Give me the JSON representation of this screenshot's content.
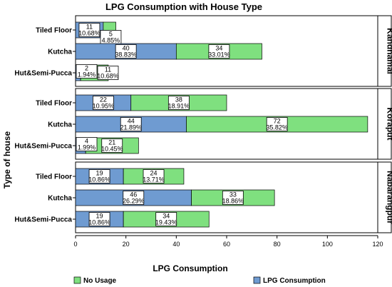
{
  "chart_data": {
    "type": "bar",
    "orientation": "horizontal",
    "stacked": true,
    "title": "LPG Consumption with House Type",
    "xlabel": "LPG Consumption",
    "ylabel": "Type of house",
    "xlim": [
      0,
      120
    ],
    "xticks": [
      "0",
      "20",
      "40",
      "60",
      "80",
      "100",
      "120"
    ],
    "grid": false,
    "legend_position": "bottom",
    "series": [
      {
        "key": "lpg",
        "name": "LPG Consumption",
        "color": "#6f9bd1"
      },
      {
        "key": "none",
        "name": "No Usage",
        "color": "#7fe07f"
      }
    ],
    "legend": [
      {
        "key": "none",
        "name": "No Usage",
        "color": "#7fe07f"
      },
      {
        "key": "lpg",
        "name": "LPG Consumption",
        "color": "#6f9bd1"
      }
    ],
    "panels": [
      {
        "name": "Kandhamal",
        "rows": [
          {
            "category": "Tiled Floor",
            "segments": [
              {
                "series": "lpg",
                "value": 11,
                "label": "11",
                "pct": "10.68%"
              },
              {
                "series": "none",
                "value": 5,
                "label": "5",
                "pct": "4.85%"
              }
            ]
          },
          {
            "category": "Kutcha",
            "segments": [
              {
                "series": "lpg",
                "value": 40,
                "label": "40",
                "pct": "38.83%"
              },
              {
                "series": "none",
                "value": 34,
                "label": "34",
                "pct": "33.01%"
              }
            ]
          },
          {
            "category": "Hut&Semi-Pucca",
            "segments": [
              {
                "series": "lpg",
                "value": 2,
                "label": "2",
                "pct": "1.94%"
              },
              {
                "series": "none",
                "value": 11,
                "label": "11",
                "pct": "10.68%"
              }
            ]
          }
        ]
      },
      {
        "name": "Koraput",
        "rows": [
          {
            "category": "Tiled Floor",
            "segments": [
              {
                "series": "lpg",
                "value": 22,
                "label": "22",
                "pct": "10.95%"
              },
              {
                "series": "none",
                "value": 38,
                "label": "38",
                "pct": "18.91%"
              }
            ]
          },
          {
            "category": "Kutcha",
            "segments": [
              {
                "series": "lpg",
                "value": 44,
                "label": "44",
                "pct": "21.89%"
              },
              {
                "series": "none",
                "value": 72,
                "label": "72",
                "pct": "35.82%"
              }
            ]
          },
          {
            "category": "Hut&Semi-Pucca",
            "segments": [
              {
                "series": "lpg",
                "value": 4,
                "label": "4",
                "pct": "1.99%"
              },
              {
                "series": "none",
                "value": 21,
                "label": "21",
                "pct": "10.45%"
              }
            ]
          }
        ]
      },
      {
        "name": "Nabarangpur",
        "rows": [
          {
            "category": "Tiled Floor",
            "segments": [
              {
                "series": "lpg",
                "value": 19,
                "label": "19",
                "pct": "10.86%"
              },
              {
                "series": "none",
                "value": 24,
                "label": "24",
                "pct": "13.71%"
              }
            ]
          },
          {
            "category": "Kutcha",
            "segments": [
              {
                "series": "lpg",
                "value": 46,
                "label": "46",
                "pct": "26.29%"
              },
              {
                "series": "none",
                "value": 33,
                "label": "33",
                "pct": "18.86%"
              }
            ]
          },
          {
            "category": "Hut&Semi-Pucca",
            "segments": [
              {
                "series": "lpg",
                "value": 19,
                "label": "19",
                "pct": "10.86%"
              },
              {
                "series": "none",
                "value": 34,
                "label": "34",
                "pct": "19.43%"
              }
            ]
          }
        ]
      }
    ]
  }
}
